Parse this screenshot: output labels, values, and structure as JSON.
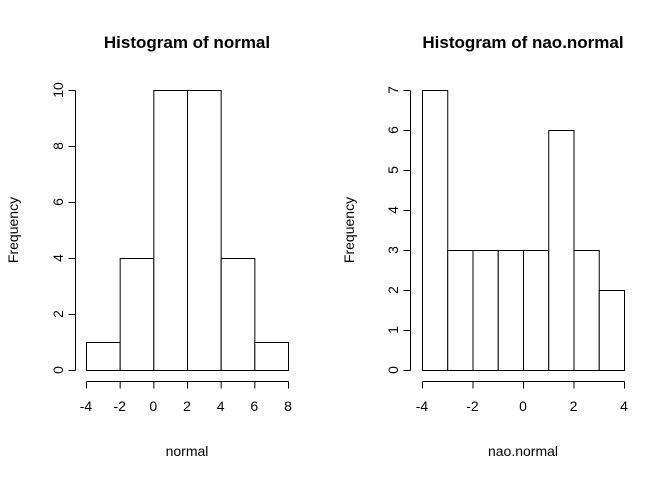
{
  "chart_data": [
    {
      "type": "bar",
      "title": "Histogram of normal",
      "xlabel": "normal",
      "ylabel": "Frequency",
      "bins": [
        [
          -4,
          -2
        ],
        [
          -2,
          0
        ],
        [
          0,
          2
        ],
        [
          2,
          4
        ],
        [
          4,
          6
        ],
        [
          6,
          8
        ]
      ],
      "values": [
        1,
        4,
        10,
        10,
        4,
        1
      ],
      "xlim": [
        -4,
        8
      ],
      "ylim": [
        0,
        10
      ],
      "xticks": [
        -4,
        -2,
        0,
        2,
        4,
        6,
        8
      ],
      "yticks": [
        0,
        2,
        4,
        6,
        8,
        10
      ]
    },
    {
      "type": "bar",
      "title": "Histogram of nao.normal",
      "xlabel": "nao.normal",
      "ylabel": "Frequency",
      "bins": [
        [
          -4,
          -3
        ],
        [
          -3,
          -2
        ],
        [
          -2,
          -1
        ],
        [
          -1,
          0
        ],
        [
          0,
          1
        ],
        [
          1,
          2
        ],
        [
          2,
          3
        ],
        [
          3,
          4
        ]
      ],
      "values": [
        7,
        3,
        3,
        3,
        3,
        6,
        3,
        2
      ],
      "xlim": [
        -4,
        4
      ],
      "ylim": [
        0,
        7
      ],
      "xticks": [
        -4,
        -2,
        0,
        2,
        4
      ],
      "yticks": [
        0,
        1,
        2,
        3,
        4,
        5,
        6,
        7
      ]
    }
  ]
}
